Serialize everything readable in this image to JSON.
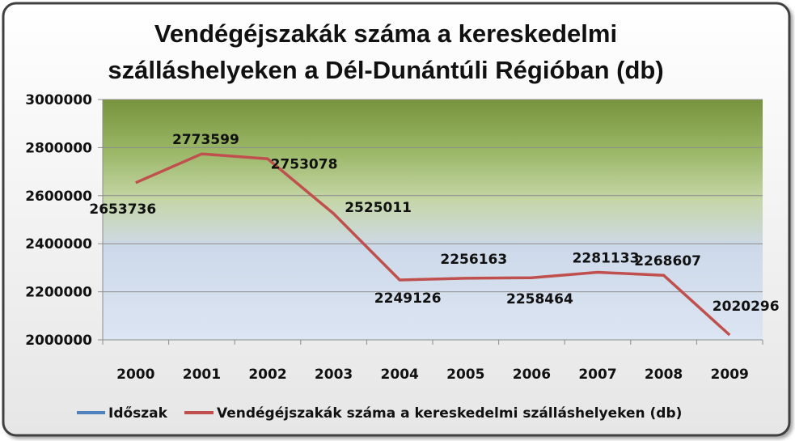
{
  "chart_data": {
    "type": "line",
    "title_lines": [
      "Vendégéjszakák száma a kereskedelmi",
      "szálláshelyeken a Dél-Dunántúli Régióban (db)"
    ],
    "xlabel": "",
    "ylabel": "",
    "categories": [
      "2000",
      "2001",
      "2002",
      "2003",
      "2004",
      "2005",
      "2006",
      "2007",
      "2008",
      "2009"
    ],
    "series": [
      {
        "name": "Vendégéjszakák száma a kereskedelmi szálláshelyeken (db)",
        "color": "#c0504d",
        "values": [
          2653736,
          2773599,
          2753078,
          2525011,
          2249126,
          2256163,
          2258464,
          2281133,
          2268607,
          2020296
        ],
        "labels": [
          "2653736",
          "2773599",
          "2753078",
          "2525011",
          "2249126",
          "2256163",
          "2258464",
          "2281133",
          "2268607",
          "2020296"
        ]
      }
    ],
    "legend": [
      {
        "name": "Időszak",
        "color": "#4f81bd"
      },
      {
        "name": "Vendégéjszakák száma a kereskedelmi szálláshelyeken (db)",
        "color": "#c0504d"
      }
    ],
    "legend_position": "bottom",
    "ylim": [
      2000000,
      3000000
    ],
    "yticks": [
      {
        "value": 2000000,
        "label": "2000000"
      },
      {
        "value": 2200000,
        "label": "2200000"
      },
      {
        "value": 2400000,
        "label": "2400000"
      },
      {
        "value": 2600000,
        "label": "2600000"
      },
      {
        "value": 2800000,
        "label": "2800000"
      },
      {
        "value": 3000000,
        "label": "3000000"
      }
    ],
    "grid": true,
    "plot_background": "gradient green to light blue",
    "colors": {
      "plot_top": "#77933c",
      "plot_mid": "#c3d69b",
      "plot_bottom": "#dbe5f1",
      "frame_border": "#404040"
    }
  }
}
